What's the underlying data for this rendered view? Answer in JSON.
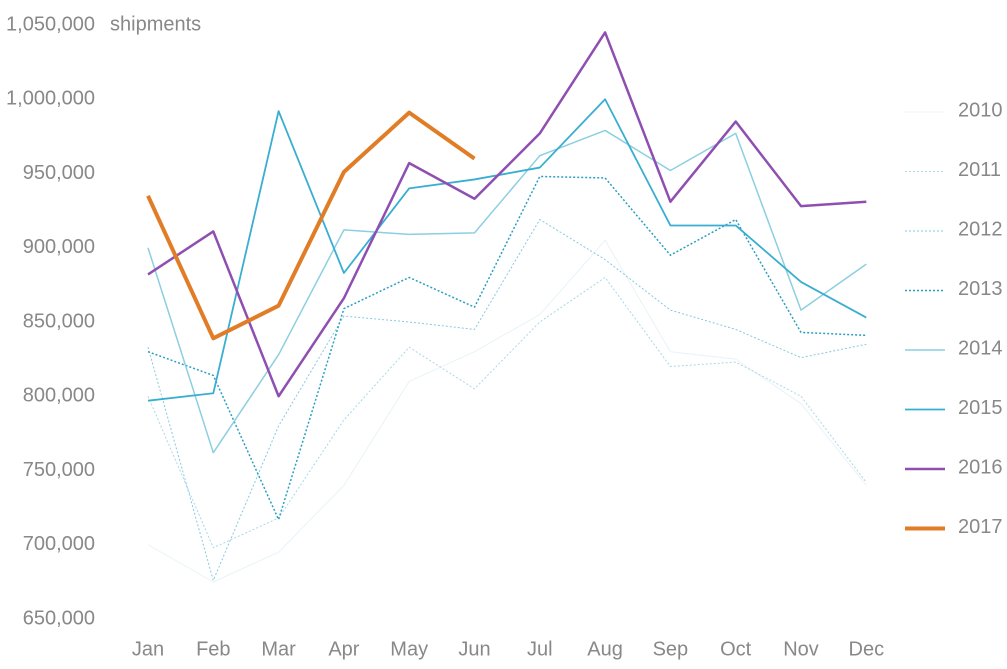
{
  "chart_data": {
    "type": "line",
    "y_label": "shipments",
    "categories": [
      "Jan",
      "Feb",
      "Mar",
      "Apr",
      "May",
      "Jun",
      "Jul",
      "Aug",
      "Sep",
      "Oct",
      "Nov",
      "Dec"
    ],
    "ylim": [
      650000,
      1050000
    ],
    "yticks": [
      {
        "value": 650000,
        "label": "650,000"
      },
      {
        "value": 700000,
        "label": "700,000"
      },
      {
        "value": 750000,
        "label": "750,000"
      },
      {
        "value": 800000,
        "label": "800,000"
      },
      {
        "value": 850000,
        "label": "850,000"
      },
      {
        "value": 900000,
        "label": "900,000"
      },
      {
        "value": 950000,
        "label": "950,000"
      },
      {
        "value": 1000000,
        "label": "1,000,000"
      },
      {
        "value": 1050000,
        "label": "1,050,000"
      }
    ],
    "grid": false,
    "legend": "right",
    "series": [
      {
        "name": "2010",
        "color": "#e8f3f7",
        "dash": false,
        "width": 1,
        "values": [
          700000,
          675000,
          695000,
          740000,
          810000,
          830000,
          855000,
          905000,
          830000,
          825000,
          795000,
          740000
        ]
      },
      {
        "name": "2011",
        "color": "#a9d8e7",
        "dash": true,
        "width": 1,
        "values": [
          800000,
          698000,
          718000,
          784000,
          833000,
          805000,
          850000,
          880000,
          820000,
          823000,
          800000,
          742000
        ]
      },
      {
        "name": "2012",
        "color": "#86c9df",
        "dash": true,
        "width": 1,
        "values": [
          833000,
          676000,
          780000,
          854000,
          850000,
          845000,
          919000,
          892000,
          858000,
          845000,
          826000,
          835000
        ]
      },
      {
        "name": "2013",
        "color": "#2a9fc1",
        "dash": true,
        "width": 1.5,
        "values": [
          830000,
          814000,
          717000,
          859000,
          880000,
          860000,
          948000,
          947000,
          895000,
          919000,
          843000,
          841000
        ]
      },
      {
        "name": "2014",
        "color": "#8ccfe0",
        "dash": false,
        "width": 1.5,
        "values": [
          900000,
          762000,
          828000,
          912000,
          909000,
          910000,
          962000,
          979000,
          952000,
          977000,
          858000,
          889000
        ]
      },
      {
        "name": "2015",
        "color": "#3aaed0",
        "dash": false,
        "width": 1.8,
        "values": [
          797000,
          802000,
          992000,
          883000,
          940000,
          946000,
          954000,
          1000000,
          915000,
          915000,
          877000,
          853000
        ]
      },
      {
        "name": "2016",
        "color": "#8f4fb0",
        "dash": false,
        "width": 2.5,
        "values": [
          882000,
          911000,
          800000,
          866000,
          957000,
          933000,
          977000,
          1045000,
          931000,
          985000,
          928000,
          931000
        ]
      },
      {
        "name": "2017",
        "color": "#e07d26",
        "dash": false,
        "width": 4,
        "values": [
          935000,
          839000,
          861000,
          951000,
          991000,
          960000,
          null,
          null,
          null,
          null,
          null,
          null
        ]
      }
    ]
  }
}
